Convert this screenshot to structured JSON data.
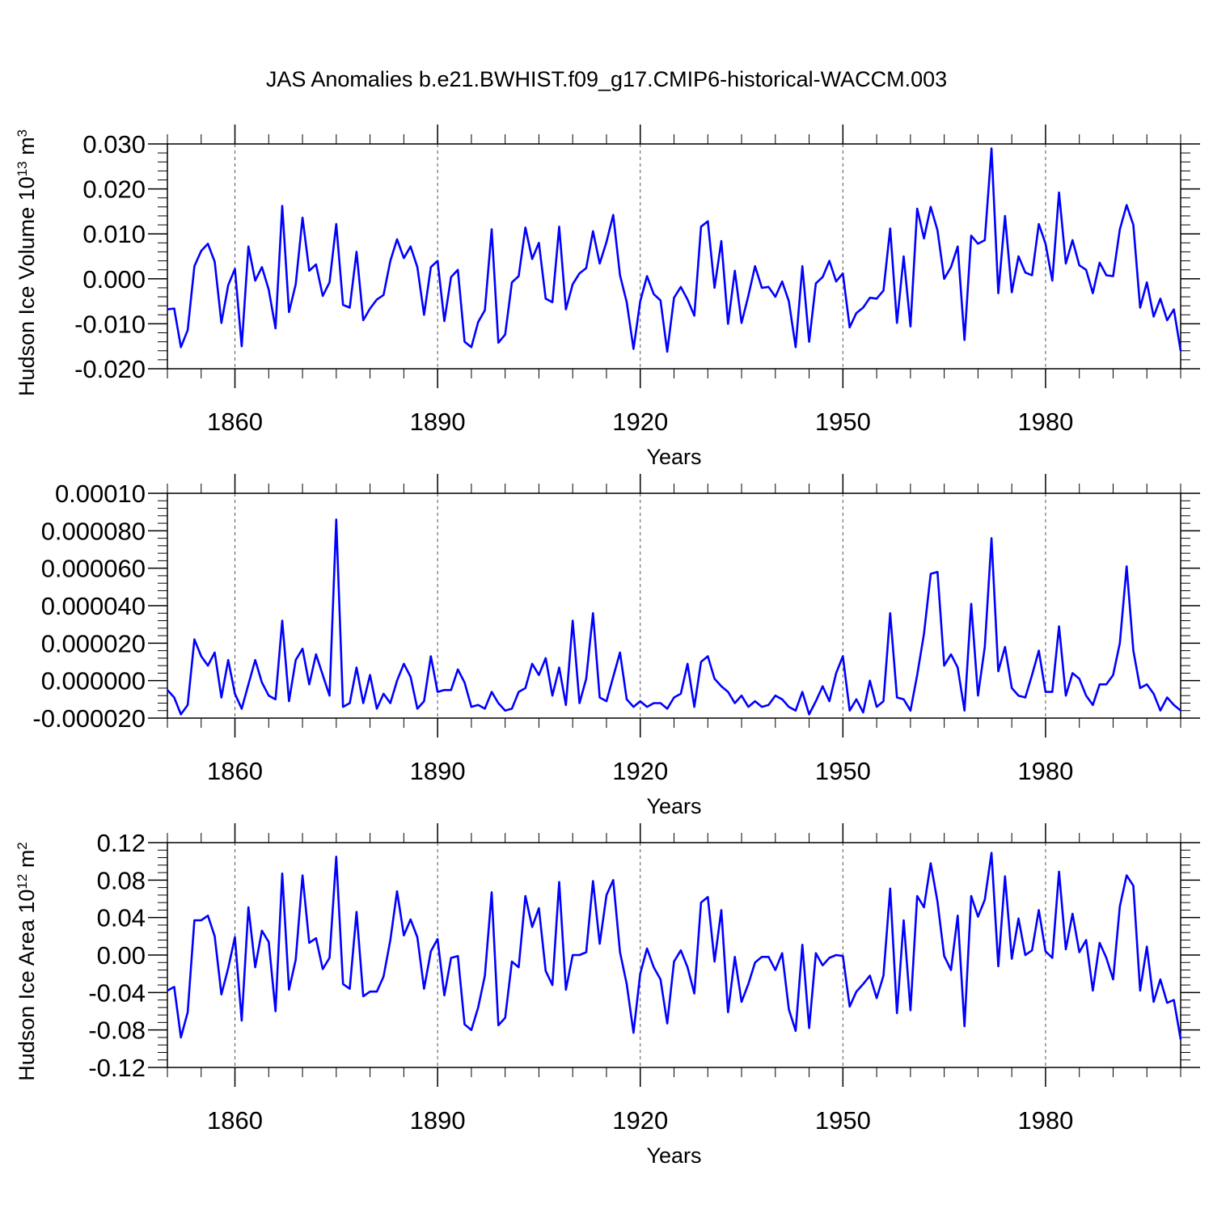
{
  "title": "JAS Anomalies b.e21.BWHIST.f09_g17.CMIP6-historical-WACCM.003",
  "chart_data": [
    {
      "type": "line",
      "title": "JAS Anomalies b.e21.BWHIST.f09_g17.CMIP6-historical-WACCM.003",
      "xlabel": "Years",
      "ylabel": {
        "base": "Hudson Ice Volume 10",
        "exponent": "13",
        "unit": " m",
        "unit_exponent": "3"
      },
      "xlim": [
        1850,
        2000
      ],
      "ylim": [
        -0.02,
        0.03
      ],
      "x_ticks": [
        1860,
        1890,
        1920,
        1950,
        1980
      ],
      "x_tick_labels": [
        "1860",
        "1890",
        "1920",
        "1950",
        "1980"
      ],
      "y_ticks": [
        -0.02,
        -0.01,
        0.0,
        0.01,
        0.02,
        0.03
      ],
      "y_tick_labels": [
        "-0.020",
        "-0.010",
        "0.000",
        "0.010",
        "0.020",
        "0.030"
      ],
      "grid": "vertical dashed at major x ticks",
      "color": "#0000ff",
      "x_start": 1850,
      "values": [
        -0.0068,
        -0.0066,
        -0.0152,
        -0.0114,
        0.0028,
        0.0062,
        0.0078,
        0.0038,
        -0.0098,
        -0.0014,
        0.0022,
        -0.015,
        0.0072,
        -0.0004,
        0.0026,
        -0.0024,
        -0.011,
        0.0162,
        -0.0074,
        -0.0012,
        0.0136,
        0.0018,
        0.0032,
        -0.0038,
        -0.0008,
        0.0122,
        -0.0058,
        -0.0064,
        0.006,
        -0.0092,
        -0.0066,
        -0.0046,
        -0.0036,
        0.004,
        0.0088,
        0.0046,
        0.0072,
        0.0026,
        -0.008,
        0.0026,
        0.004,
        -0.0094,
        0.0004,
        0.002,
        -0.014,
        -0.0152,
        -0.0096,
        -0.007,
        0.011,
        -0.0142,
        -0.0124,
        -0.0008,
        0.0006,
        0.0114,
        0.0044,
        0.008,
        -0.0044,
        -0.0052,
        0.0116,
        -0.0068,
        -0.0012,
        0.0012,
        0.0024,
        0.0106,
        0.0034,
        0.0082,
        0.0142,
        0.0008,
        -0.0052,
        -0.0156,
        -0.005,
        0.0006,
        -0.0034,
        -0.0048,
        -0.0162,
        -0.0042,
        -0.0018,
        -0.0046,
        -0.0082,
        0.0116,
        0.0128,
        -0.002,
        0.0084,
        -0.01,
        0.0018,
        -0.0098,
        -0.0038,
        0.0028,
        -0.002,
        -0.0018,
        -0.004,
        -0.0006,
        -0.005,
        -0.0152,
        0.0028,
        -0.014,
        -0.001,
        0.0004,
        0.004,
        -0.0006,
        0.0012,
        -0.0108,
        -0.0076,
        -0.0064,
        -0.0042,
        -0.0044,
        -0.0026,
        0.0112,
        -0.0098,
        0.005,
        -0.0106,
        0.0156,
        0.009,
        0.016,
        0.0108,
        0.0,
        0.0026,
        0.0072,
        -0.0136,
        0.0096,
        0.0078,
        0.0086,
        0.029,
        -0.0032,
        0.014,
        -0.003,
        0.005,
        0.0014,
        0.0008,
        0.0122,
        0.0078,
        -0.0004,
        0.0192,
        0.0034,
        0.0086,
        0.003,
        0.002,
        -0.0032,
        0.0036,
        0.0008,
        0.0006,
        0.011,
        0.0164,
        0.012,
        -0.0064,
        -0.0008,
        -0.0084,
        -0.0044,
        -0.0092,
        -0.0068,
        -0.016
      ]
    },
    {
      "type": "line",
      "xlabel": "Years",
      "ylabel": null,
      "xlim": [
        1850,
        2000
      ],
      "ylim": [
        -2e-05,
        0.0001
      ],
      "x_ticks": [
        1860,
        1890,
        1920,
        1950,
        1980
      ],
      "x_tick_labels": [
        "1860",
        "1890",
        "1920",
        "1950",
        "1980"
      ],
      "y_ticks": [
        -2e-05,
        0.0,
        2e-05,
        4e-05,
        6e-05,
        8e-05,
        0.0001
      ],
      "y_tick_labels": [
        "-0.000020",
        "0.000000",
        "0.000020",
        "0.000040",
        "0.000060",
        "0.000080",
        "0.00010"
      ],
      "grid": "vertical dashed at major x ticks",
      "color": "#0000ff",
      "x_start": 1850,
      "values": [
        -5e-06,
        -9e-06,
        -1.8e-05,
        -1.3e-05,
        2.2e-05,
        1.3e-05,
        8e-06,
        1.5e-05,
        -9e-06,
        1.1e-05,
        -7e-06,
        -1.5e-05,
        -2e-06,
        1.1e-05,
        -1e-06,
        -8e-06,
        -1e-05,
        3.2e-05,
        -1.1e-05,
        1.1e-05,
        1.7e-05,
        -2e-06,
        1.4e-05,
        3e-06,
        -8e-06,
        8.6e-05,
        -1.4e-05,
        -1.2e-05,
        7e-06,
        -1.2e-05,
        3e-06,
        -1.5e-05,
        -7e-06,
        -1.2e-05,
        0.0,
        9e-06,
        2e-06,
        -1.5e-05,
        -1.1e-05,
        1.3e-05,
        -6e-06,
        -5e-06,
        -5e-06,
        6e-06,
        -1e-06,
        -1.4e-05,
        -1.3e-05,
        -1.5e-05,
        -6e-06,
        -1.2e-05,
        -1.6e-05,
        -1.5e-05,
        -6e-06,
        -4e-06,
        9e-06,
        3e-06,
        1.2e-05,
        -8e-06,
        7e-06,
        -1.3e-05,
        3.2e-05,
        -1.2e-05,
        1e-06,
        3.6e-05,
        -9e-06,
        -1.1e-05,
        2e-06,
        1.5e-05,
        -1e-05,
        -1.4e-05,
        -1.1e-05,
        -1.4e-05,
        -1.2e-05,
        -1.2e-05,
        -1.5e-05,
        -9e-06,
        -7e-06,
        9e-06,
        -1.4e-05,
        1e-05,
        1.3e-05,
        1e-06,
        -3e-06,
        -6e-06,
        -1.2e-05,
        -8e-06,
        -1.4e-05,
        -1.1e-05,
        -1.4e-05,
        -1.3e-05,
        -8e-06,
        -1e-05,
        -1.4e-05,
        -1.6e-05,
        -6e-06,
        -1.8e-05,
        -1.1e-05,
        -3e-06,
        -1.1e-05,
        4e-06,
        1.3e-05,
        -1.6e-05,
        -1e-05,
        -1.7e-05,
        0.0,
        -1.4e-05,
        -1.1e-05,
        3.6e-05,
        -9e-06,
        -1e-05,
        -1.6e-05,
        3e-06,
        2.5e-05,
        5.7e-05,
        5.8e-05,
        8e-06,
        1.4e-05,
        7e-06,
        -1.6e-05,
        4.1e-05,
        -8e-06,
        1.8e-05,
        7.6e-05,
        5e-06,
        1.8e-05,
        -4e-06,
        -8e-06,
        -9e-06,
        3e-06,
        1.6e-05,
        -6e-06,
        -6e-06,
        2.9e-05,
        -8e-06,
        4e-06,
        1e-06,
        -8e-06,
        -1.3e-05,
        -2e-06,
        -2e-06,
        3e-06,
        2e-05,
        6.1e-05,
        1.6e-05,
        -4e-06,
        -2e-06,
        -7e-06,
        -1.6e-05,
        -9e-06,
        -1.3e-05,
        -1.6e-05
      ]
    },
    {
      "type": "line",
      "xlabel": "Years",
      "ylabel": {
        "base": "Hudson Ice Area 10",
        "exponent": "12",
        "unit": " m",
        "unit_exponent": "2"
      },
      "xlim": [
        1850,
        2000
      ],
      "ylim": [
        -0.12,
        0.12
      ],
      "x_ticks": [
        1860,
        1890,
        1920,
        1950,
        1980
      ],
      "x_tick_labels": [
        "1860",
        "1890",
        "1920",
        "1950",
        "1980"
      ],
      "y_ticks": [
        -0.12,
        -0.08,
        -0.04,
        0.0,
        0.04,
        0.08,
        0.12
      ],
      "y_tick_labels": [
        "-0.12",
        "-0.08",
        "-0.04",
        "0.00",
        "0.04",
        "0.08",
        "0.12"
      ],
      "grid": "vertical dashed at major x ticks",
      "color": "#0000ff",
      "x_start": 1850,
      "values": [
        -0.038,
        -0.034,
        -0.088,
        -0.061,
        0.037,
        0.037,
        0.042,
        0.02,
        -0.042,
        -0.014,
        0.019,
        -0.07,
        0.051,
        -0.013,
        0.026,
        0.014,
        -0.06,
        0.087,
        -0.037,
        -0.005,
        0.085,
        0.013,
        0.018,
        -0.015,
        -0.003,
        0.105,
        -0.031,
        -0.036,
        0.046,
        -0.044,
        -0.039,
        -0.039,
        -0.023,
        0.016,
        0.068,
        0.021,
        0.038,
        0.019,
        -0.036,
        0.004,
        0.017,
        -0.043,
        -0.003,
        -0.001,
        -0.074,
        -0.08,
        -0.056,
        -0.022,
        0.067,
        -0.075,
        -0.067,
        -0.007,
        -0.013,
        0.063,
        0.03,
        0.05,
        -0.017,
        -0.032,
        0.078,
        -0.037,
        0.0,
        0.0,
        0.003,
        0.079,
        0.012,
        0.064,
        0.08,
        0.003,
        -0.031,
        -0.083,
        -0.02,
        0.007,
        -0.013,
        -0.026,
        -0.073,
        -0.007,
        0.005,
        -0.013,
        -0.041,
        0.056,
        0.062,
        -0.007,
        0.048,
        -0.061,
        -0.002,
        -0.05,
        -0.031,
        -0.008,
        -0.002,
        -0.002,
        -0.016,
        0.002,
        -0.058,
        -0.081,
        0.011,
        -0.078,
        0.002,
        -0.011,
        -0.003,
        0.0,
        -0.001,
        -0.055,
        -0.039,
        -0.031,
        -0.022,
        -0.046,
        -0.022,
        0.071,
        -0.062,
        0.037,
        -0.059,
        0.063,
        0.051,
        0.098,
        0.057,
        -0.001,
        -0.016,
        0.042,
        -0.076,
        0.063,
        0.041,
        0.059,
        0.109,
        -0.012,
        0.084,
        -0.004,
        0.039,
        0.0,
        0.005,
        0.048,
        0.004,
        -0.003,
        0.089,
        0.006,
        0.044,
        0.003,
        0.016,
        -0.038,
        0.013,
        -0.003,
        -0.026,
        0.052,
        0.085,
        0.074,
        -0.038,
        0.009,
        -0.05,
        -0.026,
        -0.051,
        -0.048,
        -0.09
      ]
    }
  ]
}
